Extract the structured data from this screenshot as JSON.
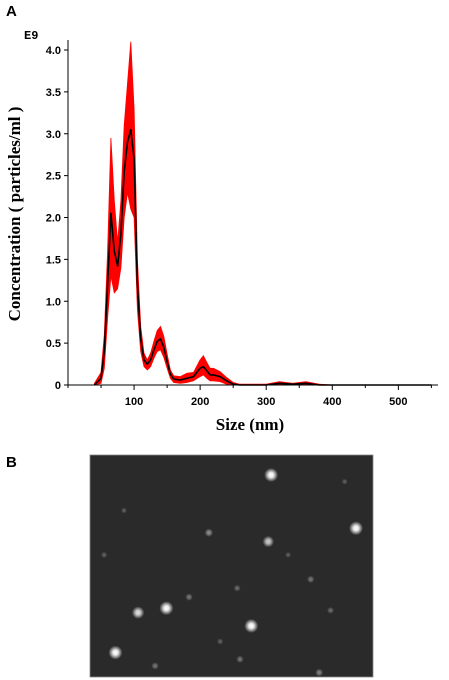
{
  "figure": {
    "panel_a_label": "A",
    "panel_b_label": "B",
    "exponent_label": "E9"
  },
  "chart_data": {
    "type": "line",
    "title": "",
    "xlabel": "Size (nm)",
    "ylabel": "Concentration ( particles/ml )",
    "y_scale_note": "E9",
    "xlim": [
      0,
      560
    ],
    "ylim": [
      0,
      4.0
    ],
    "xticks": [
      100,
      200,
      300,
      400,
      500
    ],
    "yticks": [
      0,
      0.5,
      1.0,
      1.5,
      2.0,
      2.5,
      3.0,
      3.5,
      4.0
    ],
    "ytick_labels": [
      "0",
      "0.5",
      "1.0",
      "1.5",
      "2.0",
      "2.5",
      "3.0",
      "3.5",
      "4.0"
    ],
    "grid": false,
    "series": [
      {
        "role": "mean",
        "color": "#000000",
        "x": [
          40,
          50,
          55,
          60,
          65,
          70,
          75,
          80,
          85,
          90,
          95,
          100,
          105,
          110,
          115,
          120,
          125,
          130,
          135,
          140,
          145,
          150,
          155,
          160,
          170,
          180,
          190,
          200,
          205,
          210,
          215,
          220,
          230,
          240,
          250,
          260,
          300,
          320,
          340,
          360,
          380,
          400,
          450,
          500,
          550
        ],
        "y": [
          0.0,
          0.08,
          0.4,
          1.2,
          2.05,
          1.6,
          1.42,
          1.8,
          2.55,
          2.9,
          3.05,
          2.7,
          1.2,
          0.55,
          0.3,
          0.25,
          0.3,
          0.42,
          0.52,
          0.55,
          0.45,
          0.28,
          0.13,
          0.07,
          0.06,
          0.08,
          0.1,
          0.2,
          0.22,
          0.17,
          0.12,
          0.12,
          0.1,
          0.05,
          0.01,
          0.0,
          0.0,
          0.02,
          0.01,
          0.02,
          0.0,
          0.0,
          0.0,
          0.0,
          0.0
        ]
      },
      {
        "role": "error band upper",
        "color": "#ff0000",
        "x": [
          40,
          50,
          55,
          60,
          65,
          70,
          75,
          80,
          85,
          90,
          95,
          100,
          105,
          110,
          115,
          120,
          125,
          130,
          135,
          140,
          145,
          150,
          155,
          160,
          170,
          180,
          190,
          200,
          205,
          210,
          215,
          220,
          230,
          240,
          250,
          260,
          300,
          320,
          340,
          360,
          380,
          400,
          450,
          500,
          550
        ],
        "y": [
          0.02,
          0.15,
          0.6,
          1.6,
          2.95,
          2.2,
          1.7,
          2.2,
          3.1,
          3.6,
          4.1,
          3.3,
          1.5,
          0.7,
          0.38,
          0.3,
          0.38,
          0.52,
          0.65,
          0.7,
          0.58,
          0.37,
          0.18,
          0.11,
          0.1,
          0.14,
          0.15,
          0.3,
          0.35,
          0.27,
          0.2,
          0.2,
          0.16,
          0.09,
          0.03,
          0.01,
          0.01,
          0.04,
          0.02,
          0.04,
          0.01,
          0.0,
          0.0,
          0.0,
          0.0
        ]
      },
      {
        "role": "error band lower",
        "color": "#ff0000",
        "x": [
          40,
          50,
          55,
          60,
          65,
          70,
          75,
          80,
          85,
          90,
          95,
          100,
          105,
          110,
          115,
          120,
          125,
          130,
          135,
          140,
          145,
          150,
          155,
          160,
          170,
          180,
          190,
          200,
          205,
          210,
          215,
          220,
          230,
          240,
          250,
          260,
          300,
          320,
          340,
          360,
          380,
          400,
          450,
          500,
          550
        ],
        "y": [
          0.0,
          0.02,
          0.2,
          0.8,
          1.3,
          1.1,
          1.15,
          1.4,
          2.0,
          2.3,
          2.1,
          2.0,
          0.9,
          0.4,
          0.22,
          0.18,
          0.22,
          0.32,
          0.4,
          0.42,
          0.33,
          0.2,
          0.08,
          0.03,
          0.02,
          0.03,
          0.05,
          0.1,
          0.12,
          0.08,
          0.05,
          0.05,
          0.04,
          0.01,
          0.0,
          0.0,
          0.0,
          0.0,
          0.0,
          0.0,
          0.0,
          0.0,
          0.0,
          0.0,
          0.0
        ]
      }
    ]
  },
  "micrograph": {
    "background_color": "#2a2a2a",
    "bright_particles": [
      {
        "fx": 0.64,
        "fy": 0.09,
        "brightness": 1.0
      },
      {
        "fx": 0.94,
        "fy": 0.33,
        "brightness": 1.0
      },
      {
        "fx": 0.63,
        "fy": 0.39,
        "brightness": 0.75
      },
      {
        "fx": 0.27,
        "fy": 0.69,
        "brightness": 1.0
      },
      {
        "fx": 0.17,
        "fy": 0.71,
        "brightness": 0.85
      },
      {
        "fx": 0.57,
        "fy": 0.77,
        "brightness": 1.0
      },
      {
        "fx": 0.09,
        "fy": 0.89,
        "brightness": 1.0
      },
      {
        "fx": 0.42,
        "fy": 0.35,
        "brightness": 0.45
      },
      {
        "fx": 0.78,
        "fy": 0.56,
        "brightness": 0.35
      },
      {
        "fx": 0.35,
        "fy": 0.64,
        "brightness": 0.35
      },
      {
        "fx": 0.52,
        "fy": 0.6,
        "brightness": 0.3
      },
      {
        "fx": 0.05,
        "fy": 0.45,
        "brightness": 0.25
      },
      {
        "fx": 0.85,
        "fy": 0.7,
        "brightness": 0.3
      },
      {
        "fx": 0.23,
        "fy": 0.95,
        "brightness": 0.35
      },
      {
        "fx": 0.53,
        "fy": 0.92,
        "brightness": 0.35
      },
      {
        "fx": 0.81,
        "fy": 0.98,
        "brightness": 0.4
      },
      {
        "fx": 0.12,
        "fy": 0.25,
        "brightness": 0.2
      },
      {
        "fx": 0.9,
        "fy": 0.12,
        "brightness": 0.2
      },
      {
        "fx": 0.46,
        "fy": 0.84,
        "brightness": 0.25
      },
      {
        "fx": 0.7,
        "fy": 0.45,
        "brightness": 0.2
      }
    ]
  }
}
